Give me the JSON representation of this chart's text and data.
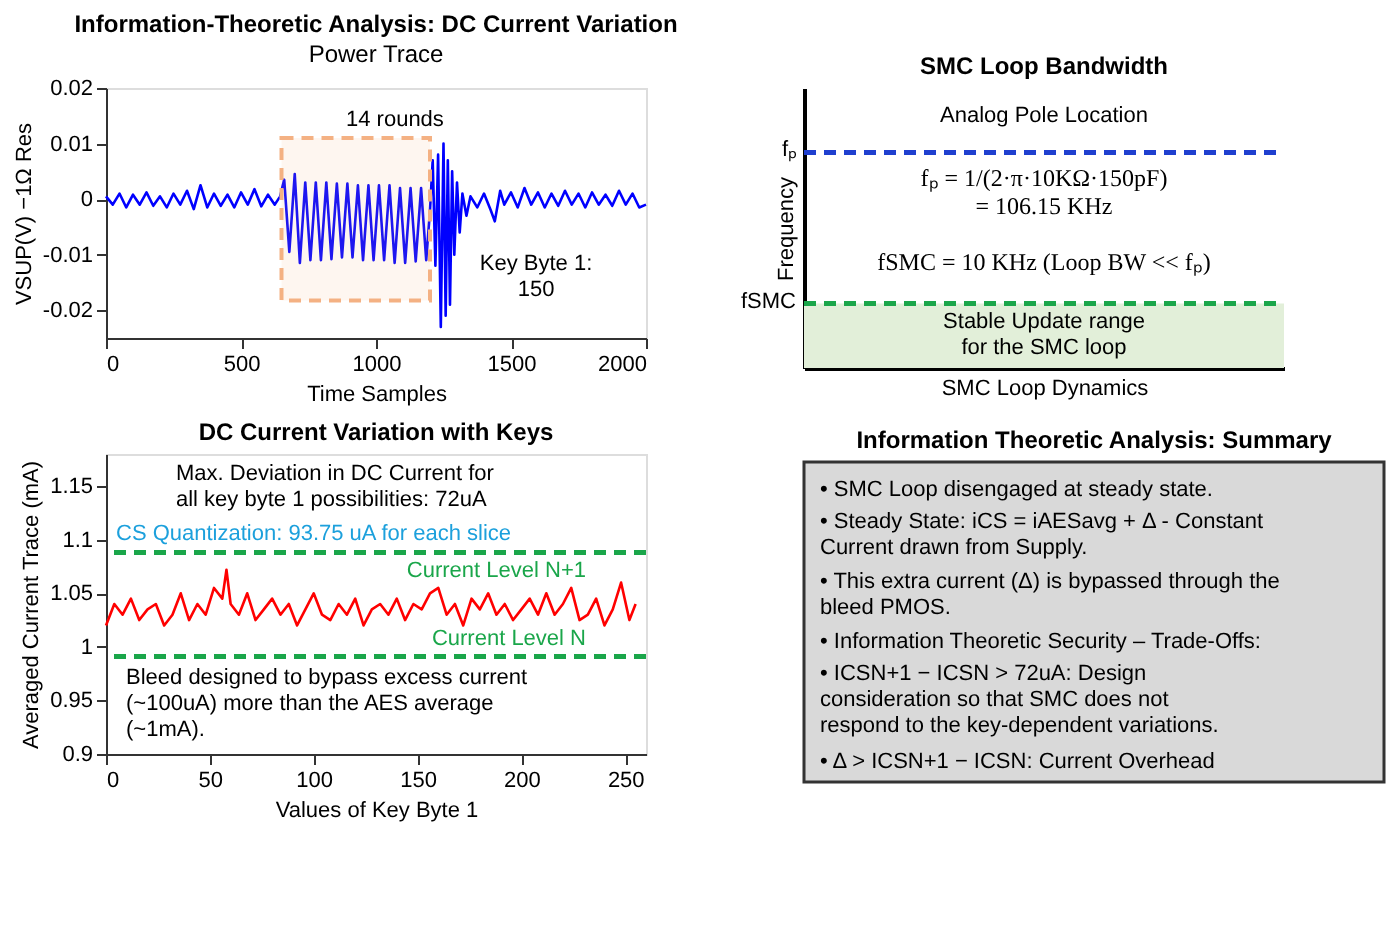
{
  "chart_data": [
    {
      "type": "line",
      "title": "Information-Theoretic Analysis: DC Current Variation",
      "subtitle": "Power Trace",
      "xlabel": "Time Samples",
      "ylabel": "VSUP(V) −1Ω Res",
      "xlim": [
        0,
        2000
      ],
      "xticks": [
        0,
        500,
        1000,
        1500,
        2000
      ],
      "ylim": [
        -0.025,
        0.02
      ],
      "yticks": [
        -0.02,
        -0.01,
        0,
        0.01,
        0.02
      ],
      "grid": false,
      "marker": "none",
      "line_style": "solid",
      "series": [
        {
          "color": "#0000ff",
          "x": [
            0,
            25,
            50,
            75,
            100,
            125,
            150,
            175,
            200,
            225,
            250,
            275,
            300,
            325,
            350,
            375,
            400,
            425,
            450,
            475,
            500,
            525,
            550,
            575,
            600,
            625,
            645,
            660,
            679,
            699,
            718,
            738,
            757,
            777,
            796,
            816,
            835,
            855,
            874,
            894,
            913,
            933,
            952,
            972,
            991,
            1011,
            1030,
            1050,
            1069,
            1089,
            1108,
            1128,
            1147,
            1167,
            1186,
            1200,
            1210,
            1220,
            1230,
            1240,
            1250,
            1258,
            1266,
            1274,
            1282,
            1290,
            1300,
            1310,
            1320,
            1335,
            1350,
            1375,
            1400,
            1425,
            1440,
            1460,
            1475,
            1500,
            1525,
            1550,
            1575,
            1600,
            1625,
            1650,
            1675,
            1700,
            1725,
            1750,
            1775,
            1800,
            1825,
            1850,
            1875,
            1900,
            1925,
            1950,
            1975,
            2000
          ],
          "values": [
            0.0005,
            -0.001,
            0.001,
            -0.0015,
            0.0008,
            -0.001,
            0.0012,
            -0.0012,
            0.0005,
            -0.0015,
            0.001,
            -0.001,
            0.0015,
            -0.0018,
            0.0025,
            -0.0015,
            0.001,
            -0.0012,
            0.0008,
            -0.0015,
            0.0012,
            -0.001,
            0.0018,
            -0.0013,
            0.0008,
            -0.001,
            0.0005,
            0.0035,
            -0.0095,
            0.0045,
            -0.0115,
            0.003,
            -0.011,
            0.003,
            -0.011,
            0.003,
            -0.0108,
            0.0028,
            -0.0105,
            0.0028,
            -0.0105,
            0.0025,
            -0.011,
            0.0025,
            -0.011,
            0.0025,
            -0.011,
            0.0025,
            -0.0115,
            0.002,
            -0.0115,
            0.002,
            -0.0112,
            0.002,
            -0.011,
            -0.002,
            0.007,
            -0.012,
            0.008,
            -0.023,
            0.01,
            -0.021,
            0.007,
            -0.019,
            0.005,
            -0.01,
            0.003,
            -0.006,
            0.001,
            -0.003,
            0.0005,
            -0.0015,
            0.001,
            -0.002,
            -0.004,
            0.0015,
            -0.001,
            0.0012,
            -0.0015,
            0.002,
            -0.001,
            0.0012,
            -0.0015,
            0.001,
            -0.0012,
            0.0015,
            -0.001,
            0.001,
            -0.0015,
            0.0012,
            -0.001,
            0.0008,
            -0.0012,
            0.0015,
            -0.001,
            0.001,
            -0.0015,
            -0.001
          ]
        }
      ],
      "bands": [
        {
          "axis": "x",
          "from": 650,
          "to": 1200,
          "color": "#f4b183"
        }
      ],
      "annotations": [
        "14 rounds",
        "Key Byte 1:\n150"
      ]
    },
    {
      "type": "line",
      "title": "DC Current Variation with Keys",
      "xlabel": "Values of Key Byte 1",
      "ylabel": "Averaged Current Trace (mA)",
      "xlim": [
        0,
        260
      ],
      "xticks": [
        0,
        50,
        100,
        150,
        200,
        250
      ],
      "ylim": [
        0.9,
        1.18
      ],
      "yticks": [
        0.9,
        0.95,
        1,
        1.05,
        1.1,
        1.15
      ],
      "grid": false,
      "marker": "none",
      "line_style": "solid",
      "series": [
        {
          "color": "#ff0000",
          "x": [
            0,
            4,
            8,
            12,
            16,
            20,
            24,
            28,
            32,
            36,
            40,
            44,
            48,
            52,
            56,
            58,
            60,
            64,
            68,
            72,
            76,
            80,
            84,
            88,
            92,
            96,
            100,
            104,
            108,
            112,
            116,
            120,
            124,
            128,
            132,
            136,
            140,
            144,
            148,
            152,
            156,
            160,
            164,
            168,
            172,
            176,
            180,
            184,
            188,
            192,
            196,
            200,
            204,
            208,
            212,
            216,
            220,
            224,
            228,
            232,
            236,
            240,
            244,
            248,
            252,
            255
          ],
          "values": [
            1.02,
            1.04,
            1.03,
            1.045,
            1.025,
            1.035,
            1.04,
            1.02,
            1.03,
            1.05,
            1.025,
            1.04,
            1.03,
            1.055,
            1.045,
            1.072,
            1.04,
            1.03,
            1.05,
            1.025,
            1.035,
            1.045,
            1.03,
            1.04,
            1.02,
            1.035,
            1.05,
            1.03,
            1.025,
            1.04,
            1.03,
            1.045,
            1.02,
            1.035,
            1.04,
            1.03,
            1.045,
            1.025,
            1.04,
            1.035,
            1.05,
            1.055,
            1.03,
            1.04,
            1.02,
            1.045,
            1.035,
            1.05,
            1.03,
            1.04,
            1.025,
            1.035,
            1.045,
            1.03,
            1.05,
            1.03,
            1.04,
            1.055,
            1.025,
            1.03,
            1.045,
            1.02,
            1.035,
            1.06,
            1.025,
            1.04
          ]
        }
      ],
      "ref_lines": [
        {
          "axis": "y",
          "value": 1.088,
          "label": "Current Level N+1",
          "color": "#1aa64a",
          "line_style": "dashed"
        },
        {
          "axis": "y",
          "value": 0.991,
          "label": "Current Level N",
          "color": "#1aa64a",
          "line_style": "dashed"
        }
      ],
      "annotations": [
        "Max. Deviation in DC Current for\nall key byte 1 possibilities: 72uA",
        "CS Quantization: 93.75 uA for each slice",
        "Bleed designed to bypass excess current\n(~100uA) more than the AES average\n(~1mA)."
      ]
    },
    {
      "type": "other",
      "title": "SMC Loop Bandwidth",
      "xlabel": "SMC Loop Dynamics",
      "ylabel": "Frequency",
      "annotations": [
        "Analog Pole Location",
        "fₚ",
        "fₚ = 1/(2·π·10KΩ·150pF)\n= 106.15 KHz",
        "fSMC = 10 KHz (Loop BW << fₚ)",
        "fSMC",
        "Stable Update range\nfor the SMC loop"
      ]
    },
    {
      "type": "other",
      "title": "Information Theoretic Analysis: Summary",
      "annotations": [
        "• SMC Loop disengaged at steady state.",
        "• Steady State: iCS = iAESavg + Δ - Constant\n   Current drawn from Supply.",
        "• This extra current (Δ) is bypassed through the\n   bleed PMOS.",
        "• Information Theoretic Security – Trade-Offs:",
        "      • ICSN+1 − ICSN > 72uA: Design\n         consideration so that SMC does not\n         respond to the key-dependent variations.",
        "      • Δ > ICSN+1 − ICSN: Current Overhead"
      ]
    }
  ]
}
